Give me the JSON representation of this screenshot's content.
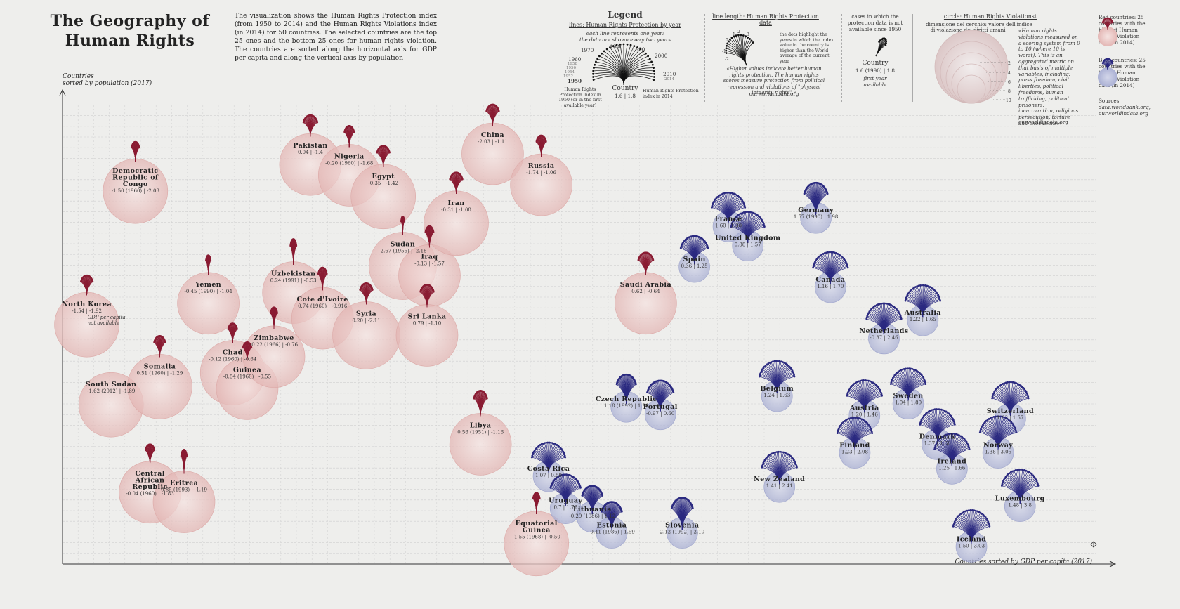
{
  "title": "The Geography of Human Rights",
  "intro": "The visualization shows the Human Rights Protection index (from 1950 to 2014) and the Human Rights Violations index (in 2014) for 50 countries. The selected countries are the top 25 ones and the bottom 25 ones for human rights violation. The countries are sorted along the horizontal axis for GDP per capita and along the vertical axis by population",
  "legend": {
    "heading": "Legend",
    "lines_title": "lines: Human Rights Protection by year",
    "lines_sub1": "each line represents one year:",
    "lines_sub2": "the data are shown every two years",
    "years": [
      "1950",
      "1952",
      "1954",
      "1956",
      "1958",
      "1960",
      "1970",
      "1980",
      "1990",
      "2000",
      "2010",
      "2014"
    ],
    "country": "Country",
    "country_vals": "1.6 | 1.8",
    "left_note": "Human Rights Protection index in 1950 (or in the first available year)",
    "right_note": "Human Rights Protection index in 2014",
    "length_title": "line length: Human Rights Protection data",
    "length_ticks": [
      "-2",
      "-1",
      "0",
      "1",
      "2",
      "3"
    ],
    "dots_note": "the dots highlight the years in which the index value in the country is higher than the World average of the current year",
    "quote": "«Higher values indicate better human rights protection. The human rights scores measure protection from political repression and violations of \"physical integrity rights\".»",
    "quote_src": "ourworldindata.org",
    "na_title": "cases in which the protection data is not available since 1950",
    "na_country": "Country",
    "na_vals": "1.6 (1990) | 1.8",
    "na_first": "first year available",
    "circle_title": "circle: Human Rights Violationst",
    "circle_sub1": "dimensione del cerchio: valore dell'indice",
    "circle_sub2": "di violazione dei diritti umani",
    "circle_ticks": [
      "2",
      "4",
      "6",
      "8",
      "10"
    ],
    "violation_quote": "«Human rights violations measured on a scoring system from 0 to 10 (where 10 is worst). This is an aggregated metric on that basis of multiple variables, including: press freedom, civil liberties, political freedoms, human trafficking, political prisoners, incarceration, religious persecution, torture and executions.»",
    "violation_src": "ourworldindata.org",
    "red_note": "Red countries: 25 countries with the highest Human Rights Violation data (in 2014)",
    "blue_note": "Blue countries: 25 countries with the lowest Human Rights Violation data (in 2014)",
    "sources_label": "Sources:",
    "sources": "data.worldbank.org, ourworldindata.org"
  },
  "colors": {
    "red": "#8a1c33",
    "red_fill": "#e8c4c2",
    "blue": "#2b2a80",
    "blue_fill": "#b9bedb",
    "grid": "#cfcfcf"
  },
  "chart_data": {
    "type": "scatter",
    "xlabel": "Countries sorted by GDP per capita (2017)",
    "ylabel": "Countries sorted by population (2017)",
    "note_north_korea": "GDP per capita not available",
    "series": [
      {
        "name": "Red countries",
        "color": "red"
      },
      {
        "name": "Blue countries",
        "color": "blue"
      }
    ],
    "points": [
      {
        "name": "North Korea",
        "label": "North Korea",
        "vals": "-1.54 | -1.92",
        "group": "red",
        "x": 1,
        "y": 21,
        "r": 46,
        "spread": 0.8,
        "len": 28
      },
      {
        "name": "South Sudan",
        "label": "South Sudan",
        "vals": "-1.62 (2012) | -1.89",
        "group": "red",
        "x": 2,
        "y": 28.5,
        "r": 46,
        "spread": 0,
        "len": 0
      },
      {
        "name": "Democratic Republic of Congo",
        "label": "Democratic Republic of Congo",
        "vals": "-1.50 (1960) | -2.03",
        "group": "red",
        "x": 3,
        "y": 8.5,
        "r": 46,
        "spread": 0.5,
        "len": 28
      },
      {
        "name": "Central African Republic",
        "label": "Central African Republic",
        "vals": "-0.04 (1960) | -1.83",
        "group": "red",
        "x": 3.6,
        "y": 36.7,
        "r": 44,
        "spread": 0.6,
        "len": 28
      },
      {
        "name": "Somalia",
        "label": "Somalia",
        "vals": "0.51 (1960) | -1.29",
        "group": "red",
        "x": 4,
        "y": 26.8,
        "r": 46,
        "spread": 0.7,
        "len": 30
      },
      {
        "name": "Eritrea",
        "label": "Eritrea",
        "vals": "0.85 (1993) | -1.19",
        "group": "red",
        "x": 5,
        "y": 37.6,
        "r": 44,
        "spread": 0.3,
        "len": 34
      },
      {
        "name": "Yemen",
        "label": "Yemen",
        "vals": "-0.45 (1990) | -1.04",
        "group": "red",
        "x": 6,
        "y": 19,
        "r": 44,
        "spread": 0.3,
        "len": 28
      },
      {
        "name": "Chad",
        "label": "Chad",
        "vals": "-0.12 (1960) | -0.64",
        "group": "red",
        "x": 7,
        "y": 25.5,
        "r": 46,
        "spread": 0.6,
        "len": 28
      },
      {
        "name": "Guinea",
        "label": "Guinea",
        "vals": "-0.84 (1960) | -0.55",
        "group": "red",
        "x": 7.6,
        "y": 27,
        "r": 44,
        "spread": 0.6,
        "len": 26
      },
      {
        "name": "Zimbabwe",
        "label": "Zimbabwe",
        "vals": "-0.22 (1966) | -0.76",
        "group": "red",
        "x": 8.7,
        "y": 24,
        "r": 44,
        "spread": 0.4,
        "len": 30
      },
      {
        "name": "Uzbekistan",
        "label": "Uzbekistan",
        "vals": "0.24 (1991) | -0.53",
        "group": "red",
        "x": 9.5,
        "y": 18,
        "r": 44,
        "spread": 0.3,
        "len": 36
      },
      {
        "name": "Pakistan",
        "label": "Pakistan",
        "vals": "0.04 | -1.4",
        "group": "red",
        "x": 10.2,
        "y": 6,
        "r": 44,
        "spread": 0.9,
        "len": 30
      },
      {
        "name": "Cote d'Ivoire",
        "label": "Cote d'Ivoire",
        "vals": "0.74 (1960) | -0.916",
        "group": "red",
        "x": 10.7,
        "y": 20.4,
        "r": 44,
        "spread": 0.5,
        "len": 32
      },
      {
        "name": "Nigeria",
        "label": "Nigeria",
        "vals": "-0.20 (1960) | -1.68",
        "group": "red",
        "x": 11.8,
        "y": 7,
        "r": 44,
        "spread": 0.6,
        "len": 30
      },
      {
        "name": "Syria",
        "label": "Syria",
        "vals": "0.20 | -2.11",
        "group": "red",
        "x": 12.5,
        "y": 22,
        "r": 48,
        "spread": 0.8,
        "len": 30
      },
      {
        "name": "Egypt",
        "label": "Egypt",
        "vals": "-0.35 | -1.42",
        "group": "red",
        "x": 13.2,
        "y": 9,
        "r": 46,
        "spread": 0.8,
        "len": 30
      },
      {
        "name": "Sudan",
        "label": "Sudan",
        "vals": "-2.67 (1956) | -2.18",
        "group": "red",
        "x": 14,
        "y": 15.5,
        "r": 48,
        "spread": 0.2,
        "len": 26
      },
      {
        "name": "Iraq",
        "label": "Iraq",
        "vals": "-0.13 | -1.57",
        "group": "red",
        "x": 15.1,
        "y": 16.4,
        "r": 44,
        "spread": 0.5,
        "len": 30
      },
      {
        "name": "Sri Lanka",
        "label": "Sri Lanka",
        "vals": "0.79 | -1.10",
        "group": "red",
        "x": 15,
        "y": 22,
        "r": 44,
        "spread": 0.8,
        "len": 32
      },
      {
        "name": "Iran",
        "label": "Iran",
        "vals": "-0.31 | -1.08",
        "group": "red",
        "x": 16.2,
        "y": 11.5,
        "r": 46,
        "spread": 0.8,
        "len": 30
      },
      {
        "name": "Libya",
        "label": "Libya",
        "vals": "0.56 (1951) | -1.16",
        "group": "red",
        "x": 17.2,
        "y": 32.2,
        "r": 44,
        "spread": 0.7,
        "len": 36
      },
      {
        "name": "China",
        "label": "China",
        "vals": "-2.03 | -1.11",
        "group": "red",
        "x": 17.7,
        "y": 5,
        "r": 44,
        "spread": 0.8,
        "len": 30
      },
      {
        "name": "Equatorial Guinea",
        "label": "Equatorial Guinea",
        "vals": "-1.55 (1968) | -0.50",
        "group": "red",
        "x": 19.5,
        "y": 41.5,
        "r": 46,
        "spread": 0.4,
        "len": 30
      },
      {
        "name": "Russia",
        "label": "Russia",
        "vals": "-1.74 | -1.06",
        "group": "red",
        "x": 19.7,
        "y": 7.9,
        "r": 44,
        "spread": 0.6,
        "len": 30
      },
      {
        "name": "Saudi Arabia",
        "label": "Saudi Arabia",
        "vals": "0.62 | -0.64",
        "group": "red",
        "x": 24,
        "y": 19,
        "r": 44,
        "spread": 0.9,
        "len": 32
      },
      {
        "name": "Costa Rica",
        "label": "Costa Rica",
        "vals": "1.07 | 0.50",
        "group": "blue",
        "x": 20,
        "y": 35.2,
        "r": 22,
        "spread": 1.6,
        "len": 44
      },
      {
        "name": "Uruguay",
        "label": "Uruguay",
        "vals": "0.7 | 1.72",
        "group": "blue",
        "x": 20.7,
        "y": 38.2,
        "r": 22,
        "spread": 1.4,
        "len": 44
      },
      {
        "name": "Lithuania",
        "label": "Lithuania",
        "vals": "-0.29 (1986) | 1.12",
        "group": "blue",
        "x": 21.8,
        "y": 39,
        "r": 22,
        "spread": 1,
        "len": 40
      },
      {
        "name": "Estonia",
        "label": "Estonia",
        "vals": "-0.41 (1986) | 1.59",
        "group": "blue",
        "x": 22.6,
        "y": 40.5,
        "r": 22,
        "spread": 1,
        "len": 40
      },
      {
        "name": "Czech Republic",
        "label": "Czech Republic",
        "vals": "1.18 (1992) | 1.96",
        "group": "blue",
        "x": 23.2,
        "y": 28.7,
        "r": 22,
        "spread": 0.9,
        "len": 42
      },
      {
        "name": "Portugal",
        "label": "Portugal",
        "vals": "-0.97 | 0.60",
        "group": "blue",
        "x": 24.6,
        "y": 29.4,
        "r": 22,
        "spread": 1.2,
        "len": 44
      },
      {
        "name": "Slovenia",
        "label": "Slovenia",
        "vals": "2.12 (1992) | 2.10",
        "group": "blue",
        "x": 25.5,
        "y": 40.5,
        "r": 22,
        "spread": 0.9,
        "len": 46
      },
      {
        "name": "Spain",
        "label": "Spain",
        "vals": "0.36 | 1.25",
        "group": "blue",
        "x": 26,
        "y": 15.6,
        "r": 22,
        "spread": 1.4,
        "len": 40
      },
      {
        "name": "France",
        "label": "France",
        "vals": "1.60 | 1.30",
        "group": "blue",
        "x": 27.4,
        "y": 11.8,
        "r": 22,
        "spread": 1.6,
        "len": 44
      },
      {
        "name": "United Kingdom",
        "label": "United Kingdom",
        "vals": "0.88 | 1.57",
        "group": "blue",
        "x": 28.2,
        "y": 13.6,
        "r": 22,
        "spread": 1.6,
        "len": 44
      },
      {
        "name": "Belgium",
        "label": "Belgium",
        "vals": "1.24 | 1.63",
        "group": "blue",
        "x": 29.4,
        "y": 27.7,
        "r": 22,
        "spread": 1.6,
        "len": 46
      },
      {
        "name": "New Zealand",
        "label": "New Zealand",
        "vals": "1.41 | 2.41",
        "group": "blue",
        "x": 29.5,
        "y": 36.2,
        "r": 22,
        "spread": 1.6,
        "len": 46
      },
      {
        "name": "Germany",
        "label": "Germany",
        "vals": "1.57 (1990) | 1.98",
        "group": "blue",
        "x": 31,
        "y": 11,
        "r": 22,
        "spread": 1,
        "len": 46
      },
      {
        "name": "Canada",
        "label": "Canada",
        "vals": "1.16 | 1.70",
        "group": "blue",
        "x": 31.6,
        "y": 17.5,
        "r": 22,
        "spread": 1.6,
        "len": 46
      },
      {
        "name": "Finland",
        "label": "Finland",
        "vals": "1.23 | 2.08",
        "group": "blue",
        "x": 32.6,
        "y": 33,
        "r": 22,
        "spread": 1.6,
        "len": 46
      },
      {
        "name": "Austria",
        "label": "Austria",
        "vals": "1.20 | 1.46",
        "group": "blue",
        "x": 33,
        "y": 29.5,
        "r": 22,
        "spread": 1.6,
        "len": 46
      },
      {
        "name": "Netherlands",
        "label": "Netherlands",
        "vals": "-0.37 | 2.46",
        "group": "blue",
        "x": 33.8,
        "y": 22.3,
        "r": 22,
        "spread": 1.6,
        "len": 46
      },
      {
        "name": "Sweden",
        "label": "Sweden",
        "vals": "1.04 | 1.80",
        "group": "blue",
        "x": 34.8,
        "y": 28.4,
        "r": 22,
        "spread": 1.6,
        "len": 46
      },
      {
        "name": "Australia",
        "label": "Australia",
        "vals": "1.22 | 1.65",
        "group": "blue",
        "x": 35.4,
        "y": 20.6,
        "r": 22,
        "spread": 1.6,
        "len": 46
      },
      {
        "name": "Denmark",
        "label": "Denmark",
        "vals": "1.37 | 1.66",
        "group": "blue",
        "x": 36,
        "y": 32.2,
        "r": 22,
        "spread": 1.6,
        "len": 46
      },
      {
        "name": "Ireland",
        "label": "Ireland",
        "vals": "1.25 | 1.66",
        "group": "blue",
        "x": 36.6,
        "y": 34.5,
        "r": 22,
        "spread": 1.6,
        "len": 46
      },
      {
        "name": "Iceland",
        "label": "Iceland",
        "vals": "1.50 | 3.03",
        "group": "blue",
        "x": 37.4,
        "y": 41.8,
        "r": 22,
        "spread": 1.6,
        "len": 48
      },
      {
        "name": "Norway",
        "label": "Norway",
        "vals": "1.38 | 3.05",
        "group": "blue",
        "x": 38.5,
        "y": 33,
        "r": 22,
        "spread": 1.6,
        "len": 48
      },
      {
        "name": "Switzerland",
        "label": "Switzerland",
        "vals": "1.03 | 1.57",
        "group": "blue",
        "x": 39,
        "y": 29.8,
        "r": 22,
        "spread": 1.6,
        "len": 48
      },
      {
        "name": "Luxembourg",
        "label": "Luxembourg",
        "vals": "1.48 | 3.8",
        "group": "blue",
        "x": 39.4,
        "y": 38,
        "r": 22,
        "spread": 1.6,
        "len": 48
      }
    ]
  }
}
